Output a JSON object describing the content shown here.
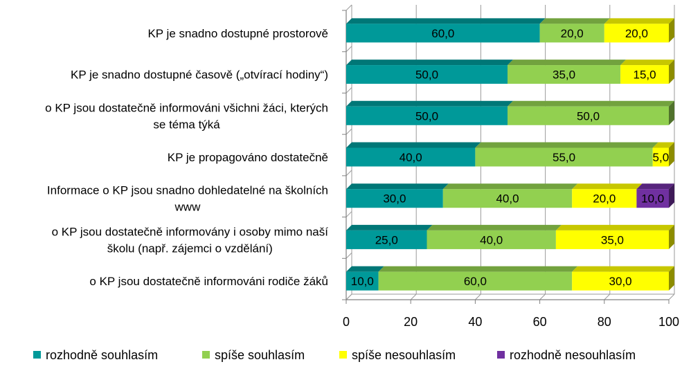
{
  "chart_data": {
    "type": "bar",
    "orientation": "horizontal",
    "stacked": true,
    "categories": [
      [
        "KP je snadno dostupné prostorově"
      ],
      [
        "KP je snadno dostupné časově („otvírací hodiny“)"
      ],
      [
        "o KP jsou dostatečně informováni všichni žáci, kterých",
        "se téma týká"
      ],
      [
        "KP je propagováno dostatečně"
      ],
      [
        "Informace o KP jsou snadno dohledatelné na školních",
        "www"
      ],
      [
        "o KP jsou dostatečně informovány i osoby mimo naší",
        "školu (např. zájemci o vzdělání)"
      ],
      [
        "o KP jsou dostatečně informováni rodiče žáků"
      ]
    ],
    "series": [
      {
        "name": "rozhodně souhlasím",
        "color": "#009999",
        "values": [
          60.0,
          50.0,
          50.0,
          40.0,
          30.0,
          25.0,
          10.0
        ]
      },
      {
        "name": "spíše souhlasím",
        "color": "#92d050",
        "values": [
          20.0,
          35.0,
          50.0,
          55.0,
          40.0,
          40.0,
          60.0
        ]
      },
      {
        "name": "spíše nesouhlasím",
        "color": "#ffff00",
        "values": [
          20.0,
          15.0,
          0,
          5.0,
          20.0,
          35.0,
          30.0
        ]
      },
      {
        "name": "rozhodně nesouhlasím",
        "color": "#7030a0",
        "values": [
          0,
          0,
          0,
          0,
          10.0,
          0,
          0
        ]
      }
    ],
    "xlim": [
      0,
      100
    ],
    "xticks": [
      "0",
      "20",
      "40",
      "60",
      "80",
      "100"
    ],
    "grid": true,
    "legend": "bottom",
    "style": "3d"
  }
}
